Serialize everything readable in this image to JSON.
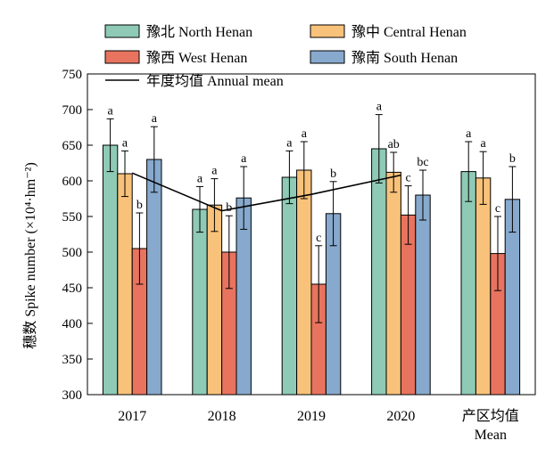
{
  "chart_data": {
    "type": "bar",
    "ylabel": "穗数 Spike number (×10⁴·hm⁻²)",
    "ylim": [
      300,
      750
    ],
    "yticks": [
      300,
      350,
      400,
      450,
      500,
      550,
      600,
      650,
      700,
      750
    ],
    "categories": [
      "2017",
      "2018",
      "2019",
      "2020",
      "产区均值"
    ],
    "category_sublabels": [
      "",
      "",
      "",
      "",
      "Mean"
    ],
    "series": [
      {
        "name": "豫北 North Henan",
        "color": "#8ecab5",
        "values": [
          650,
          560,
          605,
          645,
          613
        ],
        "errors": [
          37,
          32,
          37,
          48,
          42
        ],
        "letters": [
          "a",
          "a",
          "a",
          "a",
          "a"
        ]
      },
      {
        "name": "豫中 Central Henan",
        "color": "#f9c27a",
        "values": [
          610,
          566,
          615,
          612,
          604
        ],
        "errors": [
          32,
          37,
          40,
          28,
          37
        ],
        "letters": [
          "a",
          "a",
          "a",
          "ab",
          "a"
        ]
      },
      {
        "name": "豫西 West Henan",
        "color": "#e8735f",
        "values": [
          505,
          500,
          455,
          552,
          498
        ],
        "errors": [
          50,
          51,
          54,
          41,
          52
        ],
        "letters": [
          "b",
          "b",
          "c",
          "c",
          "c"
        ]
      },
      {
        "name": "豫南 South Henan",
        "color": "#87a9cd",
        "values": [
          630,
          576,
          554,
          580,
          574
        ],
        "errors": [
          46,
          44,
          45,
          35,
          46
        ],
        "letters": [
          "a",
          "a",
          "b",
          "bc",
          "b"
        ]
      }
    ],
    "annual_mean": {
      "name": "年度均值 Annual mean",
      "color": "#000000",
      "values": [
        611,
        558,
        581,
        608
      ]
    },
    "legend_position": "top",
    "grid": false
  }
}
